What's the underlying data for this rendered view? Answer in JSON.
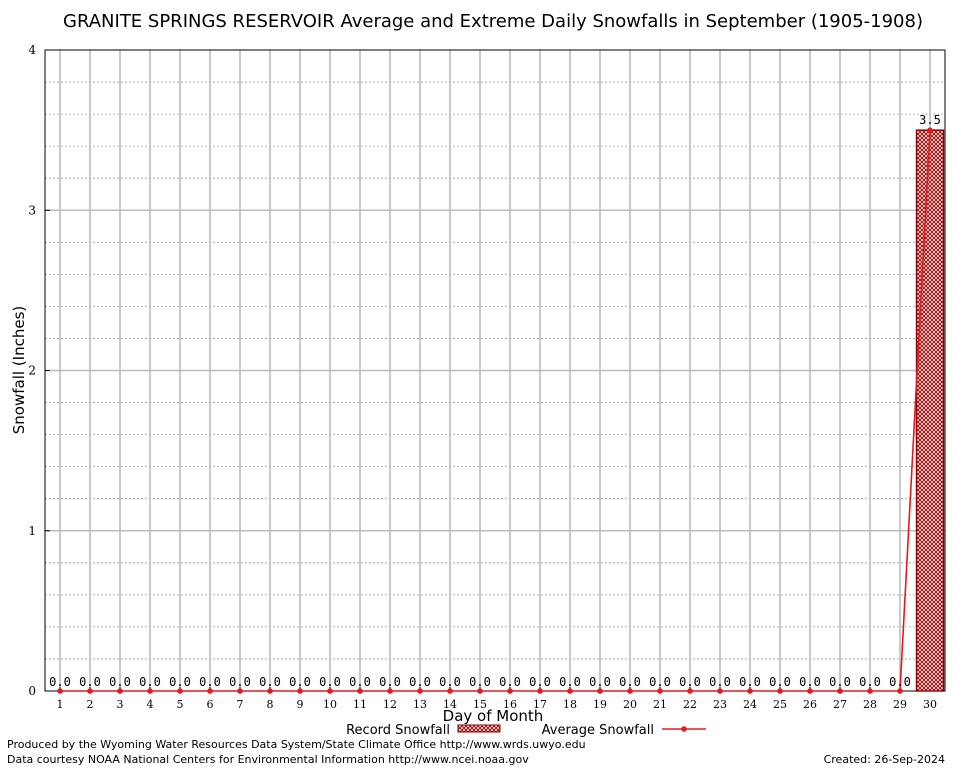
{
  "chart_data": {
    "type": "bar",
    "title": "GRANITE SPRINGS RESERVOIR Average and Extreme Daily Snowfalls in September (1905-1908)",
    "xlabel": "Day of Month",
    "ylabel": "Snowfall (Inches)",
    "ylim": [
      0,
      4
    ],
    "yticks": [
      "0",
      "1",
      "2",
      "3",
      "4"
    ],
    "grid": true,
    "legend_position": "bottom",
    "categories": [
      "1",
      "2",
      "3",
      "4",
      "5",
      "6",
      "7",
      "8",
      "9",
      "10",
      "11",
      "12",
      "13",
      "14",
      "15",
      "16",
      "17",
      "18",
      "19",
      "20",
      "21",
      "22",
      "23",
      "24",
      "25",
      "26",
      "27",
      "28",
      "29",
      "30"
    ],
    "series": [
      {
        "name": "Record Snowfall",
        "kind": "bar",
        "color": "#8b0000",
        "values": [
          0,
          0,
          0,
          0,
          0,
          0,
          0,
          0,
          0,
          0,
          0,
          0,
          0,
          0,
          0,
          0,
          0,
          0,
          0,
          0,
          0,
          0,
          0,
          0,
          0,
          0,
          0,
          0,
          0,
          3.5
        ]
      },
      {
        "name": "Average Snowfall",
        "kind": "line",
        "color": "#e8191c",
        "values": [
          0,
          0,
          0,
          0,
          0,
          0,
          0,
          0,
          0,
          0,
          0,
          0,
          0,
          0,
          0,
          0,
          0,
          0,
          0,
          0,
          0,
          0,
          0,
          0,
          0,
          0,
          0,
          0,
          0,
          3.5
        ]
      }
    ],
    "data_labels": [
      "0.0",
      "0.0",
      "0.0",
      "0.0",
      "0.0",
      "0.0",
      "0.0",
      "0.0",
      "0.0",
      "0.0",
      "0.0",
      "0.0",
      "0.0",
      "0.0",
      "0.0",
      "0.0",
      "0.0",
      "0.0",
      "0.0",
      "0.0",
      "0.0",
      "0.0",
      "0.0",
      "0.0",
      "0.0",
      "0.0",
      "0.0",
      "0.0",
      "0.0",
      "3.5"
    ]
  },
  "footer": {
    "line1": "Produced by the Wyoming Water Resources Data System/State Climate Office http://www.wrds.uwyo.edu",
    "line2": "Data courtesy NOAA National Centers for Environmental Information http://www.ncei.noaa.gov",
    "created": "Created:  26-Sep-2024"
  }
}
